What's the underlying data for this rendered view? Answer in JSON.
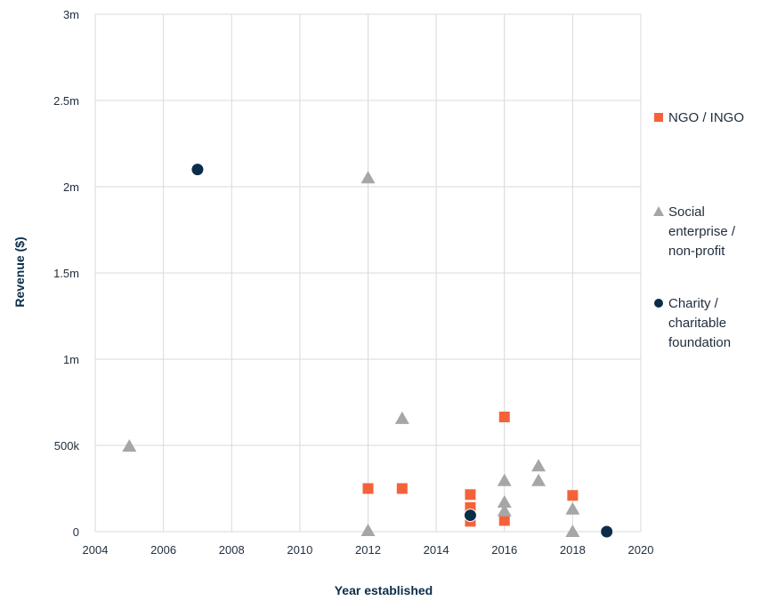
{
  "chart_data": {
    "type": "scatter",
    "xlabel": "Year established",
    "ylabel": "Revenue ($)",
    "xlim": [
      2004,
      2020
    ],
    "ylim": [
      0,
      3000000
    ],
    "x_ticks": [
      2004,
      2006,
      2008,
      2010,
      2012,
      2014,
      2016,
      2018,
      2020
    ],
    "x_tick_labels": [
      "2004",
      "2006",
      "2008",
      "2010",
      "2012",
      "2014",
      "2016",
      "2018",
      "2020"
    ],
    "y_ticks": [
      0,
      500000,
      1000000,
      1500000,
      2000000,
      2500000,
      3000000
    ],
    "y_tick_labels": [
      "0",
      "500k",
      "1m",
      "1.5m",
      "2m",
      "2.5m",
      "3m"
    ],
    "grid": true,
    "legend_position": "right",
    "series": [
      {
        "name": "NGO / INGO",
        "marker": "square",
        "color": "#f4623a",
        "points": [
          {
            "x": 2012,
            "y": 250000
          },
          {
            "x": 2013,
            "y": 250000
          },
          {
            "x": 2015,
            "y": 215000
          },
          {
            "x": 2015,
            "y": 140000
          },
          {
            "x": 2015,
            "y": 60000
          },
          {
            "x": 2016,
            "y": 665000
          },
          {
            "x": 2016,
            "y": 65000
          },
          {
            "x": 2018,
            "y": 210000
          }
        ]
      },
      {
        "name": "Social enterprise / non-profit",
        "marker": "triangle",
        "color": "#a6a6a6",
        "points": [
          {
            "x": 2005,
            "y": 495000
          },
          {
            "x": 2012,
            "y": 2050000
          },
          {
            "x": 2012,
            "y": 5000
          },
          {
            "x": 2013,
            "y": 655000
          },
          {
            "x": 2016,
            "y": 295000
          },
          {
            "x": 2016,
            "y": 170000
          },
          {
            "x": 2016,
            "y": 120000
          },
          {
            "x": 2017,
            "y": 380000
          },
          {
            "x": 2017,
            "y": 295000
          },
          {
            "x": 2018,
            "y": 130000
          },
          {
            "x": 2018,
            "y": 0
          }
        ]
      },
      {
        "name": "Charity / charitable foundation",
        "marker": "circle",
        "color": "#0b2d4a",
        "points": [
          {
            "x": 2007,
            "y": 2100000
          },
          {
            "x": 2015,
            "y": 95000
          },
          {
            "x": 2019,
            "y": 0
          }
        ]
      }
    ]
  },
  "legend": {
    "items": [
      {
        "lines": [
          "NGO / INGO"
        ]
      },
      {
        "lines": [
          "Social",
          "enterprise /",
          "non-profit"
        ]
      },
      {
        "lines": [
          "Charity /",
          "charitable",
          "foundation"
        ]
      }
    ]
  }
}
